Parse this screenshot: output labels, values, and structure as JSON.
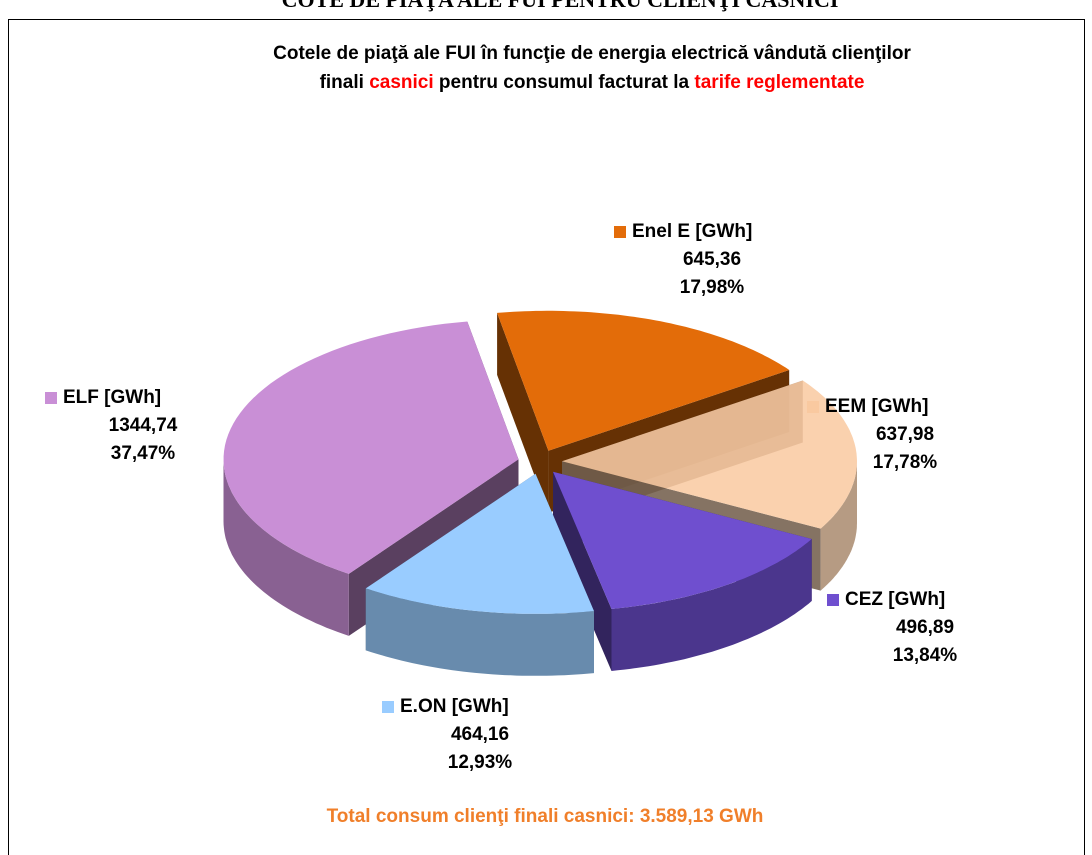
{
  "header": "COTE DE PIAŢA ALE FUI PENTRU CLIENŢI CASNICI",
  "chart_data": {
    "type": "pie3d",
    "title_lines": [
      [
        {
          "text": "Cotele de piaţă ale FUI  în funcţie de energia electrică vândută clienţilor"
        }
      ],
      [
        {
          "text": "finali "
        },
        {
          "text": "casnici",
          "color": "#ff0000"
        },
        {
          "text": " pentru consumul facturat  la "
        },
        {
          "text": "tarife  reglementate",
          "color": "#ff0000"
        }
      ]
    ],
    "title_color": "#000000",
    "categories": [
      "Enel E  [GWh]",
      "EEM [GWh]",
      "CEZ [GWh]",
      "E.ON  [GWh]",
      "ELF [GWh]"
    ],
    "values": [
      645.36,
      637.98,
      496.89,
      464.16,
      1344.74
    ],
    "value_labels": [
      "645,36",
      "637,98",
      "496,89",
      "464,16",
      "1344,74"
    ],
    "percents": [
      17.98,
      17.78,
      13.84,
      12.93,
      37.47
    ],
    "percent_labels": [
      "17,98%",
      "17,78%",
      "13,84%",
      "12,93%",
      "37,47%"
    ],
    "colors": [
      "#e36c09",
      "#f9c9a0",
      "#6f4fcf",
      "#99ccff",
      "#c98fd6"
    ],
    "annotation": "Total consum clienţi finali casnici: 3.589,13 GWh",
    "annotation_color": "#f07f2a"
  }
}
